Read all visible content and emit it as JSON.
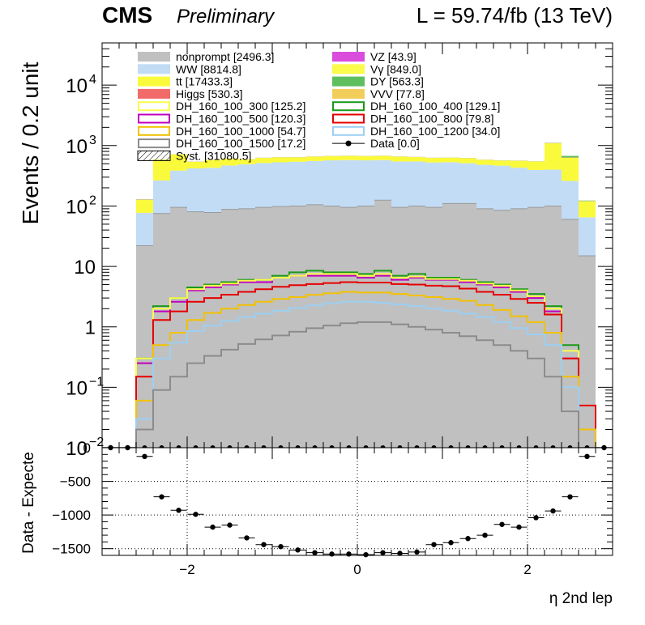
{
  "header": {
    "cms": "CMS",
    "preliminary": "Preliminary",
    "lumi": "L = 59.74/fb (13 TeV)"
  },
  "chart_data": [
    {
      "type": "bar",
      "stacked": true,
      "log_y": true,
      "ylabel": "Events / 0.2 unit",
      "ylim": [
        0.01,
        50000
      ],
      "xlim": [
        -3,
        3
      ],
      "bin_edges": [
        -3.0,
        -2.8,
        -2.6,
        -2.4,
        -2.2,
        -2.0,
        -1.8,
        -1.6,
        -1.4,
        -1.2,
        -1.0,
        -0.8,
        -0.6,
        -0.4,
        -0.2,
        0.0,
        0.2,
        0.4,
        0.6,
        0.8,
        1.0,
        1.2,
        1.4,
        1.6,
        1.8,
        2.0,
        2.2,
        2.4,
        2.6,
        2.8,
        3.0
      ],
      "y_tick_labels": [
        "10^-2",
        "10^-1",
        "1",
        "10",
        "10^2",
        "10^3",
        "10^4"
      ],
      "legend": [
        {
          "label": "nonprompt [2496.3]",
          "color": "#c0c0c0",
          "style": "fill"
        },
        {
          "label": "VZ [43.9]",
          "color": "#d94cdc",
          "style": "fill"
        },
        {
          "label": "WW [8814.8]",
          "color": "#c2dcf6",
          "style": "fill"
        },
        {
          "label": "Vγ [849.0]",
          "color": "#fbfb4c",
          "style": "fill"
        },
        {
          "label": "tt [17433.3]",
          "color": "#fafa3c",
          "style": "fill"
        },
        {
          "label": "DY [563.3]",
          "color": "#5fbf5f",
          "style": "fill"
        },
        {
          "label": "Higgs [530.3]",
          "color": "#f26b6b",
          "style": "fill"
        },
        {
          "label": "VVV [77.8]",
          "color": "#f2cd5a",
          "style": "fill"
        },
        {
          "label": "DH_160_100_300 [125.2]",
          "color": "#fbfb4c",
          "style": "line"
        },
        {
          "label": "DH_160_100_400 [129.1]",
          "color": "#1a991a",
          "style": "line"
        },
        {
          "label": "DH_160_100_500 [120.3]",
          "color": "#bf00bf",
          "style": "line"
        },
        {
          "label": "DH_160_100_800 [79.8]",
          "color": "#e60000",
          "style": "line"
        },
        {
          "label": "DH_160_100_1000 [54.7]",
          "color": "#f2c100",
          "style": "line"
        },
        {
          "label": "DH_160_100_1200 [34.0]",
          "color": "#9ccff2",
          "style": "line"
        },
        {
          "label": "DH_160_100_1500 [17.2]",
          "color": "#8c8c8c",
          "style": "line"
        },
        {
          "label": "Data [0.0]",
          "color": "#000000",
          "style": "marker"
        },
        {
          "label": "Syst. [31080.5]",
          "color": "#000000",
          "style": "hatch"
        }
      ],
      "series": [
        {
          "name": "nonprompt [2496.3]",
          "kind": "stack",
          "color": "#c0c0c0",
          "values": [
            0,
            0,
            22,
            75,
            95,
            80,
            78,
            88,
            90,
            95,
            98,
            100,
            105,
            100,
            95,
            100,
            125,
            95,
            100,
            95,
            110,
            110,
            90,
            85,
            90,
            95,
            100,
            60,
            15,
            0
          ]
        },
        {
          "name": "WW [8814.8]",
          "kind": "stack",
          "color": "#c2dcf6",
          "values": [
            0,
            0,
            55,
            190,
            290,
            340,
            350,
            380,
            400,
            420,
            430,
            440,
            450,
            470,
            480,
            470,
            450,
            450,
            445,
            430,
            420,
            400,
            390,
            380,
            340,
            300,
            300,
            200,
            50,
            0
          ]
        },
        {
          "name": "tt [17433.3]",
          "kind": "stack",
          "color": "#fafa3c",
          "values": [
            0,
            0,
            50,
            320,
            330,
            120,
            150,
            140,
            100,
            110,
            110,
            100,
            100,
            100,
            100,
            100,
            100,
            110,
            100,
            100,
            100,
            110,
            100,
            100,
            130,
            150,
            690,
            370,
            55,
            0
          ]
        },
        {
          "name": "Higgs [530.3]",
          "kind": "stack",
          "color": "#f26b6b",
          "values": [
            0,
            0,
            1,
            1,
            2,
            2,
            2,
            2,
            2,
            2,
            2,
            2,
            2,
            2,
            2,
            2,
            2,
            2,
            2,
            2,
            2,
            2,
            2,
            2,
            2,
            2,
            10,
            5,
            1,
            0
          ]
        },
        {
          "name": "DY [563.3]",
          "kind": "stack",
          "color": "#5fbf5f",
          "values": [
            0,
            0,
            1,
            2,
            2,
            2,
            2,
            2,
            2,
            2,
            2,
            2,
            2,
            2,
            2,
            2,
            2,
            2,
            2,
            2,
            2,
            2,
            2,
            2,
            2,
            2,
            10,
            40,
            2,
            0
          ]
        },
        {
          "name": "DH_160_100_400 [129.1]",
          "kind": "line",
          "color": "#1a991a",
          "values": [
            0.01,
            0.01,
            0.3,
            2.2,
            3.0,
            4.5,
            5.0,
            5.5,
            6.0,
            6.0,
            7.0,
            8.0,
            8.5,
            8.0,
            8.0,
            7.5,
            8.5,
            7.0,
            7.5,
            6.5,
            6.5,
            6.0,
            5.5,
            5.0,
            4.2,
            3.5,
            2.2,
            0.5,
            0.01,
            0.01
          ]
        },
        {
          "name": "DH_160_100_500 [120.3]",
          "kind": "line",
          "color": "#bf00bf",
          "values": [
            0.01,
            0.01,
            0.25,
            1.8,
            2.6,
            4.0,
            4.5,
            5.0,
            5.5,
            5.5,
            6.5,
            7.0,
            7.0,
            7.0,
            7.0,
            6.5,
            7.0,
            6.0,
            6.5,
            6.0,
            6.0,
            5.5,
            5.0,
            4.5,
            3.8,
            3.0,
            1.8,
            0.3,
            0.01,
            0.01
          ]
        },
        {
          "name": "DH_160_100_300 [125.2]",
          "kind": "line",
          "color": "#fbfb4c",
          "values": [
            0.01,
            0.01,
            0.3,
            2.0,
            3.0,
            4.2,
            4.8,
            5.2,
            5.8,
            6.0,
            6.5,
            7.0,
            7.5,
            7.5,
            7.5,
            7.0,
            7.5,
            6.5,
            6.8,
            6.2,
            6.2,
            5.8,
            5.2,
            4.8,
            4.0,
            3.2,
            2.0,
            0.4,
            0.01,
            0.01
          ]
        },
        {
          "name": "DH_160_100_800 [79.8]",
          "kind": "line",
          "color": "#e60000",
          "values": [
            0.01,
            0.01,
            0.15,
            1.3,
            1.8,
            2.6,
            3.0,
            3.4,
            3.8,
            4.2,
            4.6,
            4.9,
            5.1,
            5.3,
            5.5,
            5.4,
            5.4,
            5.1,
            5.0,
            4.8,
            4.7,
            4.3,
            3.8,
            3.4,
            2.9,
            2.5,
            1.6,
            0.3,
            0.05,
            0.01
          ]
        },
        {
          "name": "DH_160_100_1000 [54.7]",
          "kind": "line",
          "color": "#f2c100",
          "values": [
            0.01,
            0.01,
            0.06,
            0.5,
            0.8,
            1.3,
            1.7,
            2.0,
            2.3,
            2.6,
            2.9,
            3.1,
            3.4,
            3.6,
            3.8,
            3.7,
            3.7,
            3.5,
            3.3,
            3.1,
            2.9,
            2.7,
            2.3,
            1.9,
            1.5,
            1.2,
            0.8,
            0.15,
            0.02,
            0.01
          ]
        },
        {
          "name": "DH_160_100_1200 [34.0]",
          "kind": "line",
          "color": "#9ccff2",
          "values": [
            0.01,
            0.01,
            0.03,
            0.3,
            0.55,
            0.85,
            1.05,
            1.25,
            1.45,
            1.65,
            1.85,
            2.05,
            2.25,
            2.45,
            2.6,
            2.6,
            2.5,
            2.35,
            2.2,
            2.0,
            1.85,
            1.65,
            1.45,
            1.2,
            0.95,
            0.75,
            0.5,
            0.1,
            0.01,
            0.01
          ]
        },
        {
          "name": "DH_160_100_1500 [17.2]",
          "kind": "line",
          "color": "#8c8c8c",
          "values": [
            0.01,
            0.01,
            0.02,
            0.09,
            0.15,
            0.25,
            0.33,
            0.42,
            0.52,
            0.62,
            0.72,
            0.83,
            0.95,
            1.05,
            1.15,
            1.2,
            1.2,
            1.1,
            1.0,
            0.9,
            0.8,
            0.7,
            0.6,
            0.5,
            0.4,
            0.3,
            0.15,
            0.04,
            0.01,
            0.01
          ]
        }
      ]
    },
    {
      "type": "scatter",
      "ylabel": "Data - Expecte",
      "xlabel": "η 2nd lep",
      "xlim": [
        -3,
        3
      ],
      "ylim": [
        -1600,
        0
      ],
      "x_ticks": [
        -2,
        0,
        2
      ],
      "x_tick_labels": [
        "−2",
        "0",
        "2"
      ],
      "y_ticks": [
        -1500,
        -1000,
        -500,
        0
      ],
      "y_tick_labels": [
        "−1500",
        "−1000",
        "−500",
        "0"
      ],
      "grid": true,
      "x": [
        -2.9,
        -2.7,
        -2.5,
        -2.3,
        -2.1,
        -1.9,
        -1.7,
        -1.5,
        -1.3,
        -1.1,
        -0.9,
        -0.7,
        -0.5,
        -0.3,
        -0.1,
        0.1,
        0.3,
        0.5,
        0.7,
        0.9,
        1.1,
        1.3,
        1.5,
        1.7,
        1.9,
        2.1,
        2.3,
        2.5,
        2.7,
        2.9
      ],
      "y": [
        0,
        0,
        -130,
        -730,
        -930,
        -990,
        -1180,
        -1150,
        -1340,
        -1440,
        -1470,
        -1520,
        -1560,
        -1580,
        -1580,
        -1590,
        -1560,
        -1570,
        -1550,
        -1440,
        -1410,
        -1350,
        -1300,
        -1140,
        -1180,
        -1040,
        -940,
        -730,
        -130,
        0
      ]
    }
  ]
}
